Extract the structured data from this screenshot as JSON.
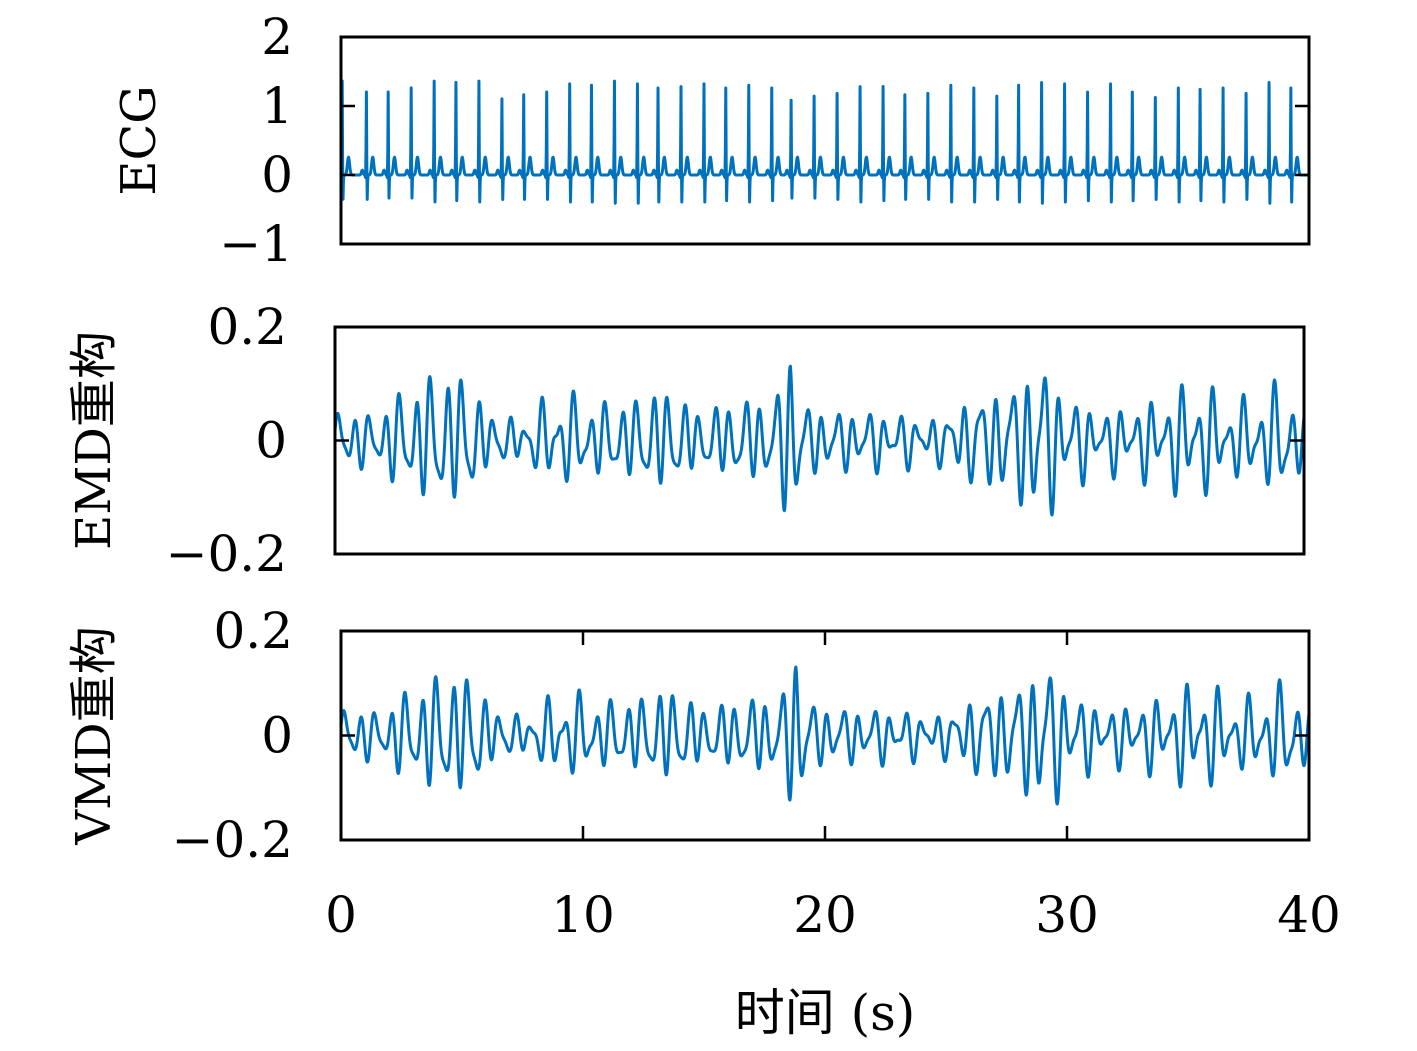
{
  "chart_data": {
    "type": "line",
    "x_label": "时间 (s)",
    "x_ticks": [
      "0",
      "10",
      "20",
      "30",
      "40"
    ],
    "x_tick_values": [
      0,
      10,
      20,
      30,
      40
    ],
    "xlim": [
      0,
      40
    ],
    "line_color": "#0072BD",
    "grid": false,
    "panels": [
      {
        "id": "ecg",
        "ylabel": "ECG",
        "ylim": [
          -1,
          2
        ],
        "y_ticks": [
          "−1",
          "0",
          "1",
          "2"
        ],
        "y_tick_values": [
          -1,
          0,
          1,
          2
        ],
        "show_x_ticks": false,
        "signal": {
          "kind": "ecg",
          "beat_times": [
            0.05,
            1.05,
            1.95,
            2.9,
            3.85,
            4.75,
            5.7,
            6.65,
            7.55,
            8.5,
            9.45,
            10.35,
            11.3,
            12.25,
            13.1,
            14.05,
            15.0,
            15.9,
            16.85,
            17.8,
            18.6,
            19.55,
            20.5,
            21.45,
            22.4,
            23.3,
            24.25,
            25.2,
            26.15,
            27.1,
            28.0,
            28.95,
            29.9,
            30.85,
            31.8,
            32.7,
            33.65,
            34.6,
            35.5,
            36.45,
            37.4,
            38.35,
            39.25
          ],
          "r_peaks": [
            1.38,
            1.22,
            1.22,
            1.28,
            1.38,
            1.36,
            1.38,
            1.12,
            1.18,
            1.22,
            1.34,
            1.32,
            1.38,
            1.34,
            1.28,
            1.3,
            1.34,
            1.28,
            1.32,
            1.28,
            1.1,
            1.16,
            1.2,
            1.3,
            1.3,
            1.18,
            1.2,
            1.32,
            1.28,
            1.16,
            1.32,
            1.36,
            1.34,
            1.22,
            1.34,
            1.22,
            1.14,
            1.28,
            1.26,
            1.28,
            1.2,
            1.36,
            1.28
          ],
          "s_troughs": [
            -0.38,
            -0.38,
            -0.36,
            -0.36,
            -0.42,
            -0.4,
            -0.42,
            -0.38,
            -0.38,
            -0.38,
            -0.42,
            -0.42,
            -0.44,
            -0.44,
            -0.42,
            -0.42,
            -0.42,
            -0.4,
            -0.42,
            -0.4,
            -0.36,
            -0.36,
            -0.38,
            -0.42,
            -0.4,
            -0.38,
            -0.38,
            -0.42,
            -0.42,
            -0.38,
            -0.42,
            -0.44,
            -0.42,
            -0.4,
            -0.42,
            -0.4,
            -0.38,
            -0.42,
            -0.4,
            -0.42,
            -0.38,
            -0.44,
            -0.42
          ]
        }
      },
      {
        "id": "emd",
        "ylabel": "EMD重构",
        "ylim": [
          -0.2,
          0.2
        ],
        "y_ticks": [
          "−0.2",
          "0",
          "0.2"
        ],
        "y_tick_values": [
          -0.2,
          0,
          0.2
        ],
        "show_x_ticks": false,
        "signal": {
          "kind": "oscillation",
          "carrier_hz": 1.55,
          "envelope": [
            [
              0,
              0.045
            ],
            [
              0.3,
              0.06
            ],
            [
              1.5,
              0.04
            ],
            [
              2.3,
              0.07
            ],
            [
              3.0,
              0.085
            ],
            [
              4.0,
              0.11
            ],
            [
              5.3,
              0.115
            ],
            [
              6.1,
              0.06
            ],
            [
              7.0,
              0.035
            ],
            [
              8.0,
              0.04
            ],
            [
              9.0,
              0.08
            ],
            [
              11.0,
              0.06
            ],
            [
              12.5,
              0.07
            ],
            [
              13.5,
              0.09
            ],
            [
              15.0,
              0.05
            ],
            [
              16.5,
              0.065
            ],
            [
              17.5,
              0.07
            ],
            [
              18.2,
              0.07
            ],
            [
              18.8,
              0.17
            ],
            [
              19.3,
              0.06
            ],
            [
              20.5,
              0.05
            ],
            [
              22.0,
              0.05
            ],
            [
              23.5,
              0.045
            ],
            [
              24.5,
              0.035
            ],
            [
              25.5,
              0.05
            ],
            [
              26.5,
              0.08
            ],
            [
              27.8,
              0.09
            ],
            [
              28.5,
              0.11
            ],
            [
              28.9,
              0.17
            ],
            [
              29.4,
              0.12
            ],
            [
              30.2,
              0.08
            ],
            [
              31.5,
              0.05
            ],
            [
              33.0,
              0.06
            ],
            [
              34.0,
              0.07
            ],
            [
              35.5,
              0.1
            ],
            [
              37.0,
              0.06
            ],
            [
              38.5,
              0.08
            ],
            [
              39.2,
              0.1
            ],
            [
              40,
              0.05
            ]
          ]
        }
      },
      {
        "id": "vmd",
        "ylabel": "VMD重构",
        "ylim": [
          -0.2,
          0.2
        ],
        "y_ticks": [
          "−0.2",
          "0",
          "0.2"
        ],
        "y_tick_values": [
          -0.2,
          0,
          0.2
        ],
        "show_x_ticks": true,
        "signal": {
          "kind": "oscillation",
          "carrier_hz": 1.55,
          "envelope": [
            [
              0,
              0.045
            ],
            [
              0.3,
              0.06
            ],
            [
              1.5,
              0.04
            ],
            [
              2.3,
              0.07
            ],
            [
              3.0,
              0.085
            ],
            [
              4.0,
              0.11
            ],
            [
              5.3,
              0.115
            ],
            [
              6.1,
              0.06
            ],
            [
              7.0,
              0.035
            ],
            [
              8.0,
              0.04
            ],
            [
              9.0,
              0.08
            ],
            [
              11.0,
              0.06
            ],
            [
              12.5,
              0.07
            ],
            [
              13.5,
              0.09
            ],
            [
              15.0,
              0.05
            ],
            [
              16.5,
              0.065
            ],
            [
              17.5,
              0.07
            ],
            [
              18.2,
              0.07
            ],
            [
              18.8,
              0.17
            ],
            [
              19.3,
              0.06
            ],
            [
              20.5,
              0.05
            ],
            [
              22.0,
              0.05
            ],
            [
              23.5,
              0.045
            ],
            [
              24.5,
              0.035
            ],
            [
              25.5,
              0.05
            ],
            [
              26.5,
              0.08
            ],
            [
              27.8,
              0.09
            ],
            [
              28.5,
              0.11
            ],
            [
              28.9,
              0.17
            ],
            [
              29.4,
              0.12
            ],
            [
              30.2,
              0.08
            ],
            [
              31.5,
              0.05
            ],
            [
              33.0,
              0.06
            ],
            [
              34.0,
              0.07
            ],
            [
              35.5,
              0.1
            ],
            [
              37.0,
              0.06
            ],
            [
              38.5,
              0.08
            ],
            [
              39.2,
              0.1
            ],
            [
              40,
              0.05
            ]
          ]
        }
      }
    ]
  }
}
